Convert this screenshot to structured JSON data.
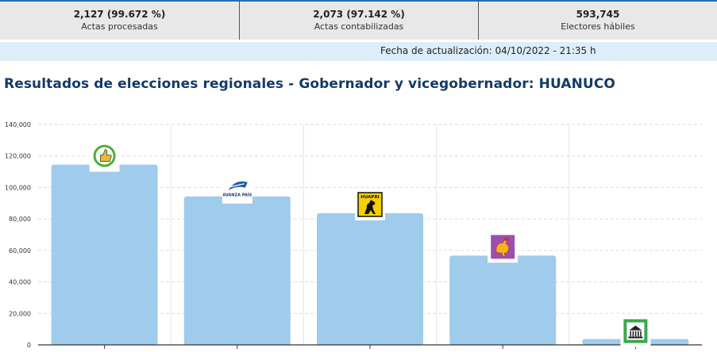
{
  "stats": [
    {
      "value": "2,127 (99.672 %)",
      "label": "Actas procesadas"
    },
    {
      "value": "2,073 (97.142 %)",
      "label": "Actas contabilizadas"
    },
    {
      "value": "593,745",
      "label": "Electores hábiles"
    }
  ],
  "update": {
    "text": "Fecha de actualización: 04/10/2022 - 21:35 h"
  },
  "page_title": "Resultados de elecciones regionales - Gobernador y vicegobernador: HUANUCO",
  "logos": [
    {
      "icon": "thumbs-up-logo-icon",
      "text": ""
    },
    {
      "icon": "avanza-pais-logo-icon",
      "text": "AVANZA PAÍS"
    },
    {
      "icon": "huapri-horse-logo-icon",
      "text": "HUAPRI"
    },
    {
      "icon": "rooster-logo-icon",
      "text": ""
    },
    {
      "icon": "temple-logo-icon",
      "text": ""
    }
  ],
  "chart_data": {
    "type": "bar",
    "categories": [
      "",
      "",
      "",
      "",
      ""
    ],
    "values": [
      114500,
      94300,
      83600,
      56700,
      3700
    ],
    "ylim": [
      0,
      140000
    ],
    "yticks": [
      "0",
      "20,000",
      "40,000",
      "60,000",
      "80,000",
      "100,000",
      "120,000",
      "140,000"
    ],
    "grid": true,
    "bar_color": "#9fcbec"
  }
}
